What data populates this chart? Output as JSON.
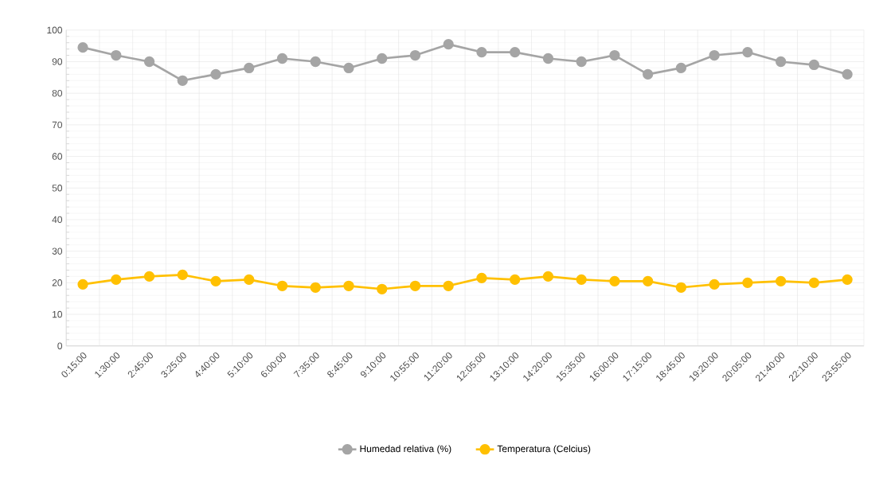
{
  "chart_data": {
    "type": "line",
    "categories": [
      "0:15:00",
      "1:30:00",
      "2:45:00",
      "3:25:00",
      "4:40:00",
      "5:10:00",
      "6:00:00",
      "7:35:00",
      "8:45:00",
      "9:10:00",
      "10:55:00",
      "11:20:00",
      "12:05:00",
      "13:10:00",
      "14:20:00",
      "15:35:00",
      "16:00:00",
      "17:15:00",
      "18:45:00",
      "19:20:00",
      "20:05:00",
      "21:40:00",
      "22:10:00",
      "23:55:00"
    ],
    "series": [
      {
        "name": "Humedad relativa (%)",
        "color": "#a5a5a5",
        "values": [
          94.5,
          92,
          90,
          84,
          86,
          88,
          91,
          90,
          88,
          91,
          92,
          95.5,
          93,
          93,
          91,
          90,
          92,
          86,
          88,
          92,
          93,
          90,
          89,
          86
        ]
      },
      {
        "name": "Temperatura (Celcius)",
        "color": "#ffc000",
        "values": [
          19.5,
          21,
          22,
          22.5,
          20.5,
          21,
          19,
          18.5,
          19,
          18,
          19,
          19,
          21.5,
          21,
          22,
          21,
          20.5,
          20.5,
          18.5,
          19.5,
          20,
          20.5,
          20,
          21
        ]
      }
    ],
    "ylim": [
      0,
      100
    ],
    "yticks": [
      0,
      10,
      20,
      30,
      40,
      50,
      60,
      70,
      80,
      90,
      100
    ],
    "grid": true,
    "legend": "bottom",
    "marker": "circle",
    "line_style": "solid"
  }
}
